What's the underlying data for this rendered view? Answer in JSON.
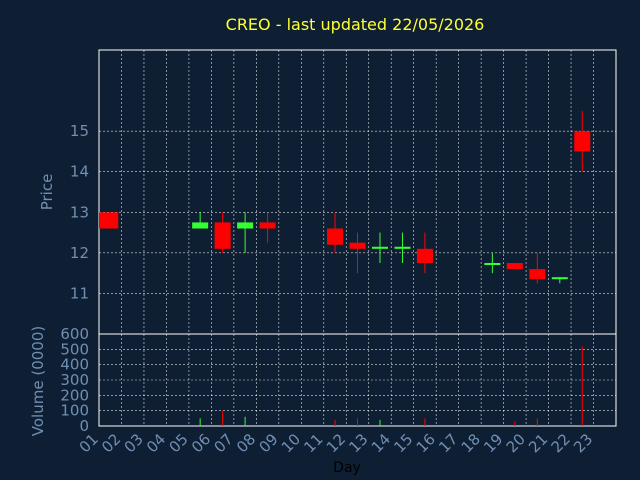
{
  "colors": {
    "background": "#0f1f33",
    "up": "#33ff33",
    "down": "#ff0000",
    "title": "#ffff33",
    "axis_text": "#6f8fb3",
    "grid": "#ffffff"
  },
  "chart_data": {
    "type": "candlestick",
    "title": "CREO - last updated 22/05/2026",
    "price_panel": {
      "ylabel": "Price",
      "ylim": [
        10,
        17
      ],
      "yticks": [
        11,
        12,
        13,
        14,
        15
      ]
    },
    "volume_panel": {
      "ylabel": "Volume (0000)",
      "ylim": [
        0,
        600
      ],
      "yticks": [
        0,
        100,
        200,
        300,
        400,
        500,
        600
      ]
    },
    "xlabel": "Day",
    "x_ticks": [
      "01",
      "02",
      "03",
      "04",
      "05",
      "06",
      "07",
      "08",
      "09",
      "10",
      "11",
      "12",
      "13",
      "14",
      "15",
      "16",
      "17",
      "18",
      "19",
      "20",
      "21",
      "22",
      "23"
    ],
    "grid": true,
    "candles": [
      {
        "day": "01",
        "open": 13.0,
        "high": 13.0,
        "low": 12.6,
        "close": 12.6,
        "volume": 0
      },
      {
        "day": "05",
        "open": 12.6,
        "high": 13.0,
        "low": 12.6,
        "close": 12.75,
        "volume": 50
      },
      {
        "day": "06",
        "open": 12.75,
        "high": 13.0,
        "low": 12.0,
        "close": 12.1,
        "volume": 100
      },
      {
        "day": "07",
        "open": 12.6,
        "high": 13.0,
        "low": 12.0,
        "close": 12.75,
        "volume": 60
      },
      {
        "day": "08",
        "open": 12.75,
        "high": 13.0,
        "low": 12.25,
        "close": 12.6,
        "volume": 0
      },
      {
        "day": "11",
        "open": 12.6,
        "high": 13.0,
        "low": 12.0,
        "close": 12.2,
        "volume": 40
      },
      {
        "day": "12",
        "open": 12.25,
        "high": 12.5,
        "low": 11.5,
        "close": 12.1,
        "volume": 50
      },
      {
        "day": "13",
        "open": 12.1,
        "high": 12.5,
        "low": 11.75,
        "close": 12.15,
        "volume": 40
      },
      {
        "day": "14",
        "open": 12.1,
        "high": 12.5,
        "low": 11.75,
        "close": 12.15,
        "volume": 0
      },
      {
        "day": "15",
        "open": 12.1,
        "high": 12.5,
        "low": 11.5,
        "close": 11.75,
        "volume": 50
      },
      {
        "day": "18",
        "open": 11.7,
        "high": 12.0,
        "low": 11.5,
        "close": 11.75,
        "volume": 0
      },
      {
        "day": "19",
        "open": 11.75,
        "high": 11.75,
        "low": 11.6,
        "close": 11.6,
        "volume": 30
      },
      {
        "day": "20",
        "open": 11.6,
        "high": 12.0,
        "low": 11.25,
        "close": 11.35,
        "volume": 50
      },
      {
        "day": "21",
        "open": 11.35,
        "high": 11.4,
        "low": 11.25,
        "close": 11.4,
        "volume": 0
      },
      {
        "day": "22",
        "open": 15.0,
        "high": 15.5,
        "low": 14.0,
        "close": 14.5,
        "volume": 520
      }
    ]
  }
}
